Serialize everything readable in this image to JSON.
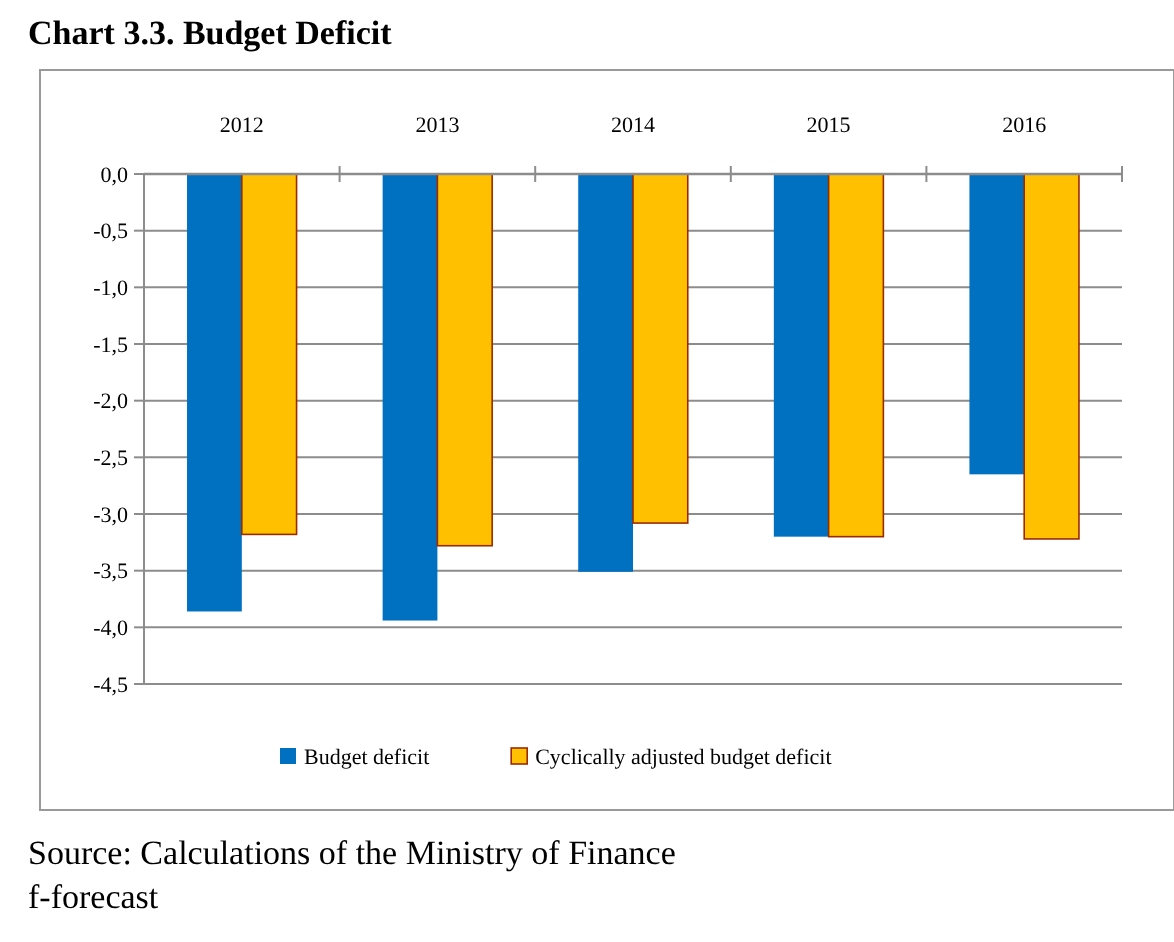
{
  "chart_data": {
    "type": "bar",
    "title": "Chart 3.3. Budget Deficit",
    "categories": [
      "2012",
      "2013",
      "2014",
      "2015",
      "2016"
    ],
    "series": [
      {
        "name": "Budget deficit",
        "color": "#0070c0",
        "values": [
          -3.86,
          -3.94,
          -3.51,
          -3.2,
          -2.65
        ]
      },
      {
        "name": "Cyclically adjusted budget deficit",
        "color": "#ffc000",
        "values": [
          -3.18,
          -3.28,
          -3.08,
          -3.2,
          -3.22
        ]
      }
    ],
    "ylim": [
      -4.5,
      0
    ],
    "yticks": [
      {
        "value": 0,
        "label": "0,0"
      },
      {
        "value": -0.5,
        "label": "-0,5"
      },
      {
        "value": -1,
        "label": "-1,0"
      },
      {
        "value": -1.5,
        "label": "-1,5"
      },
      {
        "value": -2,
        "label": "-2,0"
      },
      {
        "value": -2.5,
        "label": "-2,5"
      },
      {
        "value": -3,
        "label": "-3,0"
      },
      {
        "value": -3.5,
        "label": "-3,5"
      },
      {
        "value": -4,
        "label": "-4,0"
      },
      {
        "value": -4.5,
        "label": "-4,5"
      }
    ],
    "grid": "y",
    "legend": "bottom",
    "annotations": [
      "Source: Calculations of the Ministry of Finance",
      "f-forecast"
    ]
  }
}
